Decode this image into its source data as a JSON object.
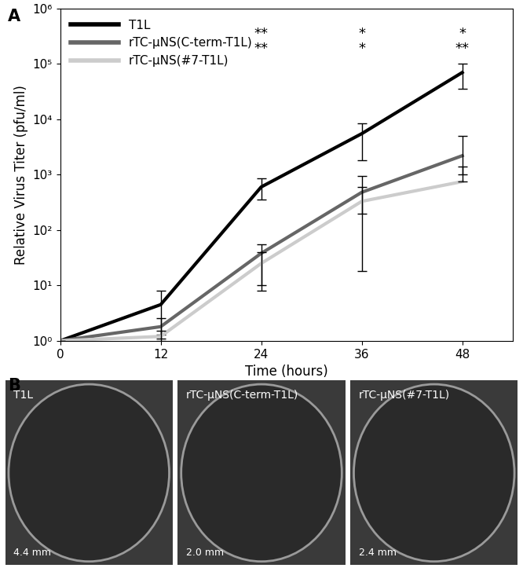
{
  "chart_data": {
    "type": "line",
    "panel": "A",
    "x_label": "Time (hours)",
    "y_label": "Relative Virus Titer (pfu/ml)",
    "x": [
      0,
      12,
      24,
      36,
      48
    ],
    "series": [
      {
        "name": "T1L",
        "color": "#000000",
        "values": [
          1,
          4.5,
          600,
          5500,
          70000
        ],
        "error_low": [
          1,
          1.3,
          350,
          1800,
          35000
        ],
        "error_high": [
          1,
          8,
          850,
          8500,
          100000
        ],
        "significance": [
          null,
          null,
          null,
          null,
          null
        ]
      },
      {
        "name": "rTC-μNS(C-term-T1L)",
        "color": "#666666",
        "values": [
          1,
          1.8,
          38,
          480,
          2200
        ],
        "error_low": [
          1,
          1.1,
          8,
          18,
          1000
        ],
        "error_high": [
          1,
          2.6,
          55,
          950,
          5000
        ],
        "significance": [
          null,
          null,
          "**",
          "*",
          "*"
        ]
      },
      {
        "name": "rTC-μNS(#7-T1L)",
        "color": "#cccccc",
        "values": [
          1,
          1.2,
          25,
          330,
          750
        ],
        "error_low": [
          1,
          1.0,
          10,
          200,
          750
        ],
        "error_high": [
          1,
          1.5,
          40,
          600,
          1400
        ],
        "significance": [
          null,
          null,
          "**",
          "*",
          "**"
        ]
      }
    ],
    "log": "y",
    "legend": "upper left",
    "grid": false,
    "xlim": [
      0,
      54
    ],
    "xticks": [
      0,
      12,
      24,
      36,
      48
    ],
    "ylim": [
      1,
      1000000
    ],
    "yticks": [
      {
        "value": 1,
        "label": "10⁰"
      },
      {
        "value": 10,
        "label": "10¹"
      },
      {
        "value": 100,
        "label": "10²"
      },
      {
        "value": 1000,
        "label": "10³"
      },
      {
        "value": 10000,
        "label": "10⁴"
      },
      {
        "value": 100000,
        "label": "10⁵"
      },
      {
        "value": 1000000,
        "label": "10⁶"
      }
    ]
  },
  "panel_b": {
    "panel": "B",
    "images": [
      {
        "label": "T1L",
        "size": "4.4 mm"
      },
      {
        "label": "rTC-μNS(C-term-T1L)",
        "size": "2.0 mm"
      },
      {
        "label": "rTC-μNS(#7-T1L)",
        "size": "2.4 mm"
      }
    ]
  }
}
